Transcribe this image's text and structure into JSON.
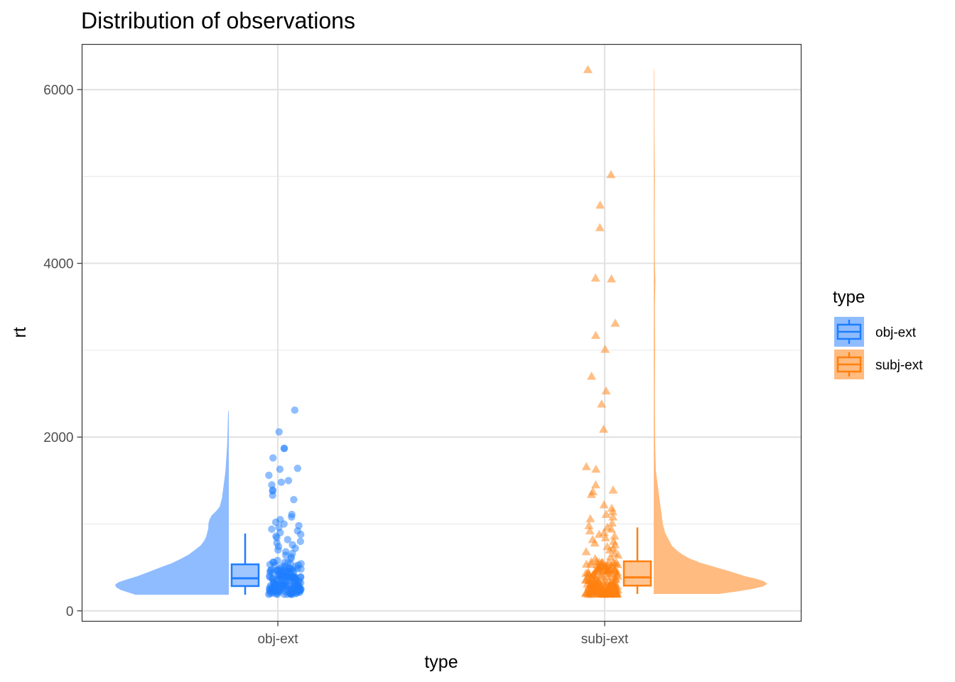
{
  "chart_data": {
    "type": "raincloud",
    "title": "Distribution of observations",
    "xlabel": "type",
    "ylabel": "rt",
    "categories": [
      "obj-ext",
      "subj-ext"
    ],
    "ylim": [
      -120,
      6520
    ],
    "yticks": [
      0,
      2000,
      4000,
      6000
    ],
    "yticks_labels": [
      "0",
      "2000",
      "4000",
      "6000"
    ],
    "grid": true,
    "legend": {
      "title": "type",
      "position": "right",
      "entries": [
        "obj-ext",
        "subj-ext"
      ]
    },
    "series": [
      {
        "name": "obj-ext",
        "color": "#1e7dff",
        "fill": "#8fbcff",
        "marker": "circle",
        "box": {
          "whisker_low": 185,
          "q1": 285,
          "median": 375,
          "q3": 535,
          "whisker_high": 890
        },
        "density": {
          "y": [
            185,
            210,
            240,
            270,
            300,
            330,
            360,
            400,
            450,
            500,
            550,
            600,
            650,
            700,
            750,
            800,
            850,
            900,
            950,
            1000,
            1050,
            1100,
            1150,
            1200,
            1300,
            1400,
            1500,
            1600,
            1700,
            1800,
            1900,
            2000,
            2100,
            2200,
            2300
          ],
          "width": [
            0.82,
            0.88,
            0.95,
            0.99,
            1.0,
            0.97,
            0.9,
            0.8,
            0.7,
            0.6,
            0.5,
            0.42,
            0.35,
            0.3,
            0.25,
            0.22,
            0.2,
            0.19,
            0.18,
            0.18,
            0.17,
            0.15,
            0.11,
            0.08,
            0.06,
            0.05,
            0.04,
            0.03,
            0.025,
            0.02,
            0.015,
            0.012,
            0.01,
            0.008,
            0.005
          ]
        },
        "outliers": [
          2310,
          2060,
          1870,
          1870,
          1760,
          1640,
          1630,
          1560,
          1500,
          1480,
          1450,
          1390,
          1380,
          1330,
          1280,
          1110,
          1080,
          1050,
          1020,
          1000,
          980,
          960,
          940,
          920,
          900,
          880,
          860,
          840,
          820,
          800,
          780,
          760,
          740,
          720,
          700,
          680,
          660,
          640,
          620,
          600,
          580,
          560
        ],
        "bulk": {
          "low": 190,
          "high": 560,
          "count": 150
        }
      },
      {
        "name": "subj-ext",
        "color": "#ff7f0e",
        "fill": "#ffbb80",
        "marker": "triangle",
        "box": {
          "whisker_low": 195,
          "q1": 290,
          "median": 385,
          "q3": 570,
          "whisker_high": 960
        },
        "density": {
          "y": [
            195,
            220,
            250,
            280,
            310,
            340,
            370,
            400,
            450,
            500,
            550,
            600,
            650,
            700,
            750,
            800,
            850,
            900,
            950,
            1000,
            1100,
            1200,
            1300,
            1400,
            1500,
            1600,
            1800,
            2000,
            2500,
            3000,
            3500,
            3800,
            4000,
            4500,
            5000,
            5500,
            6000,
            6230
          ],
          "width": [
            0.58,
            0.72,
            0.86,
            0.96,
            1.0,
            0.97,
            0.9,
            0.8,
            0.68,
            0.55,
            0.42,
            0.32,
            0.25,
            0.2,
            0.16,
            0.14,
            0.12,
            0.1,
            0.09,
            0.08,
            0.07,
            0.06,
            0.05,
            0.04,
            0.03,
            0.02,
            0.015,
            0.012,
            0.01,
            0.012,
            0.01,
            0.015,
            0.01,
            0.008,
            0.01,
            0.006,
            0.005,
            0.004
          ]
        },
        "outliers": [
          6230,
          5020,
          4670,
          4410,
          3830,
          3820,
          3310,
          3170,
          3010,
          2700,
          2530,
          2380,
          2090,
          1660,
          1630,
          1450,
          1390,
          1370,
          1340,
          1220,
          1180,
          1140,
          1110,
          1080,
          1060,
          1010,
          980,
          960,
          940,
          920,
          900,
          880,
          860,
          840,
          820,
          800,
          780,
          760,
          740,
          720,
          700,
          680,
          660,
          640,
          620,
          600
        ],
        "bulk": {
          "low": 190,
          "high": 580,
          "count": 170
        }
      }
    ]
  }
}
